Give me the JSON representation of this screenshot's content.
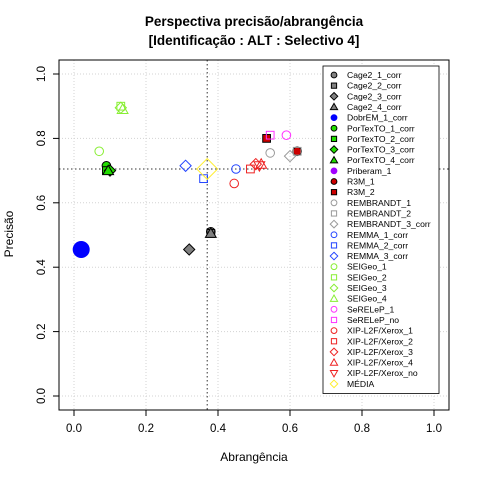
{
  "chart_data": {
    "type": "scatter",
    "title": "Perspectiva precisão/abrangência",
    "subtitle": "[Identificação : ALT : Selectivo 4]",
    "xlabel": "Abrangência",
    "ylabel": "Precisão",
    "xlim": [
      0,
      1
    ],
    "ylim": [
      0,
      1
    ],
    "xticks": [
      "0.0",
      "0.2",
      "0.4",
      "0.6",
      "0.8",
      "1.0"
    ],
    "yticks": [
      "0.0",
      "0.2",
      "0.4",
      "0.6",
      "0.8",
      "1.0"
    ],
    "grid": true,
    "reference_lines": {
      "x": 0.37,
      "y": 0.705
    },
    "legend_position": "top-right",
    "series": [
      {
        "name": "Cage2_1_corr",
        "marker": "circle",
        "fill": "#808080",
        "stroke": "#000000",
        "x": 0.38,
        "y": 0.51
      },
      {
        "name": "Cage2_2_corr",
        "marker": "square",
        "fill": "#808080",
        "stroke": "#000000",
        "x": 0.38,
        "y": 0.505
      },
      {
        "name": "Cage2_3_corr",
        "marker": "diamond",
        "fill": "#808080",
        "stroke": "#000000",
        "x": 0.32,
        "y": 0.455
      },
      {
        "name": "Cage2_4_corr",
        "marker": "triangle",
        "fill": "#808080",
        "stroke": "#000000",
        "x": 0.38,
        "y": 0.505
      },
      {
        "name": "DobrEM_1_corr",
        "marker": "circle",
        "fill": "#0000ff",
        "stroke": "#0000ff",
        "x": 0.02,
        "y": 0.455,
        "size": "large"
      },
      {
        "name": "PorTexTO_1_corr",
        "marker": "circle",
        "fill": "#22dd00",
        "stroke": "#000000",
        "x": 0.09,
        "y": 0.715
      },
      {
        "name": "PorTexTO_2_corr",
        "marker": "square",
        "fill": "#22dd00",
        "stroke": "#000000",
        "x": 0.09,
        "y": 0.7
      },
      {
        "name": "PorTexTO_3_corr",
        "marker": "diamond",
        "fill": "#22dd00",
        "stroke": "#000000",
        "x": 0.1,
        "y": 0.7
      },
      {
        "name": "PorTexTO_4_corr",
        "marker": "triangle",
        "fill": "#22dd00",
        "stroke": "#000000",
        "x": 0.095,
        "y": 0.7
      },
      {
        "name": "Priberam_1",
        "marker": "circle",
        "fill": "#a000ff",
        "stroke": "#a000ff",
        "x": null,
        "y": null
      },
      {
        "name": "R3M_1",
        "marker": "circle",
        "fill": "#cc0000",
        "stroke": "#000000",
        "x": 0.62,
        "y": 0.76
      },
      {
        "name": "R3M_2",
        "marker": "square",
        "fill": "#cc0000",
        "stroke": "#000000",
        "x": 0.535,
        "y": 0.8
      },
      {
        "name": "REMBRANDT_1",
        "marker": "circle",
        "fill": "none",
        "stroke": "#999999",
        "x": 0.545,
        "y": 0.755
      },
      {
        "name": "REMBRANDT_2",
        "marker": "square",
        "fill": "none",
        "stroke": "#999999",
        "x": 0.62,
        "y": 0.76
      },
      {
        "name": "REMBRANDT_3_corr",
        "marker": "diamond",
        "fill": "none",
        "stroke": "#999999",
        "x": 0.6,
        "y": 0.745
      },
      {
        "name": "REMMA_1_corr",
        "marker": "circle",
        "fill": "none",
        "stroke": "#2244ff",
        "x": 0.45,
        "y": 0.705
      },
      {
        "name": "REMMA_2_corr",
        "marker": "square",
        "fill": "none",
        "stroke": "#2244ff",
        "x": 0.36,
        "y": 0.675
      },
      {
        "name": "REMMA_3_corr",
        "marker": "diamond",
        "fill": "none",
        "stroke": "#2244ff",
        "x": 0.31,
        "y": 0.715
      },
      {
        "name": "SEIGeo_1",
        "marker": "circle",
        "fill": "none",
        "stroke": "#88ee33",
        "x": 0.07,
        "y": 0.76
      },
      {
        "name": "SEIGeo_2",
        "marker": "square",
        "fill": "none",
        "stroke": "#88ee33",
        "x": 0.13,
        "y": 0.9
      },
      {
        "name": "SEIGeo_3",
        "marker": "diamond",
        "fill": "none",
        "stroke": "#88ee33",
        "x": 0.13,
        "y": 0.895
      },
      {
        "name": "SEIGeo_4",
        "marker": "triangle",
        "fill": "none",
        "stroke": "#88ee33",
        "x": 0.135,
        "y": 0.89
      },
      {
        "name": "SeRELeP_1",
        "marker": "circle",
        "fill": "none",
        "stroke": "#ff33ff",
        "x": 0.59,
        "y": 0.81
      },
      {
        "name": "SeRELeP_no",
        "marker": "square",
        "fill": "none",
        "stroke": "#ff33ff",
        "x": 0.545,
        "y": 0.81
      },
      {
        "name": "XIP-L2F/Xerox_1",
        "marker": "circle",
        "fill": "none",
        "stroke": "#ee2222",
        "x": 0.445,
        "y": 0.66
      },
      {
        "name": "XIP-L2F/Xerox_2",
        "marker": "square",
        "fill": "none",
        "stroke": "#ee2222",
        "x": 0.49,
        "y": 0.705
      },
      {
        "name": "XIP-L2F/Xerox_3",
        "marker": "diamond",
        "fill": "none",
        "stroke": "#ee2222",
        "x": 0.505,
        "y": 0.72
      },
      {
        "name": "XIP-L2F/Xerox_4",
        "marker": "triangle",
        "fill": "none",
        "stroke": "#ee2222",
        "x": 0.52,
        "y": 0.72
      },
      {
        "name": "XIP-L2F/Xerox_no",
        "marker": "triangle-down",
        "fill": "none",
        "stroke": "#ee2222",
        "x": 0.515,
        "y": 0.715
      },
      {
        "name": "MÉDIA",
        "marker": "diamond",
        "fill": "none",
        "stroke": "#ffee33",
        "x": 0.37,
        "y": 0.705,
        "size": "large"
      }
    ]
  }
}
